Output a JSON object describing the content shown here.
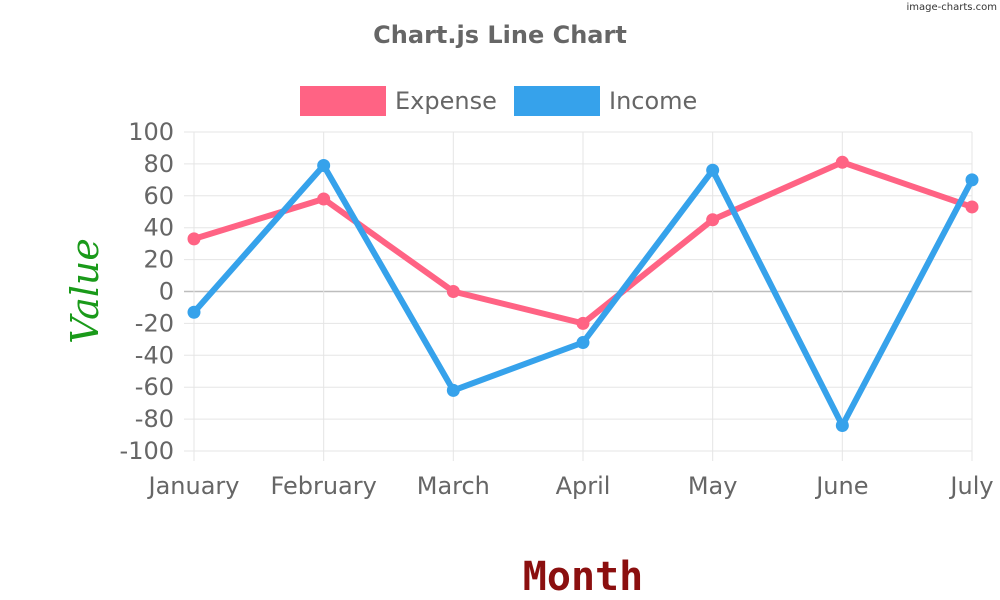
{
  "watermark": "image-charts.com",
  "colors": {
    "grid": "#e5e5e5",
    "zero_line": "#bdbdbd",
    "axis_text": "#666666",
    "xlabel": "#8b0f0f",
    "ylabel": "#1a9a1a"
  },
  "chart_data": {
    "type": "line",
    "title": "Chart.js Line Chart",
    "xlabel": "Month",
    "ylabel": "Value",
    "categories": [
      "January",
      "February",
      "March",
      "April",
      "May",
      "June",
      "July"
    ],
    "ylim": [
      -100,
      100
    ],
    "yticks": [
      "100",
      "80",
      "60",
      "40",
      "20",
      "0",
      "-20",
      "-40",
      "-60",
      "-80",
      "-100"
    ],
    "grid": true,
    "legend_position": "top",
    "series": [
      {
        "name": "Expense",
        "color": "#ff6384",
        "values": [
          33,
          58,
          0,
          -20,
          45,
          81,
          53
        ]
      },
      {
        "name": "Income",
        "color": "#36a2eb",
        "values": [
          -13,
          79,
          -62,
          -32,
          76,
          -84,
          70
        ]
      }
    ]
  }
}
